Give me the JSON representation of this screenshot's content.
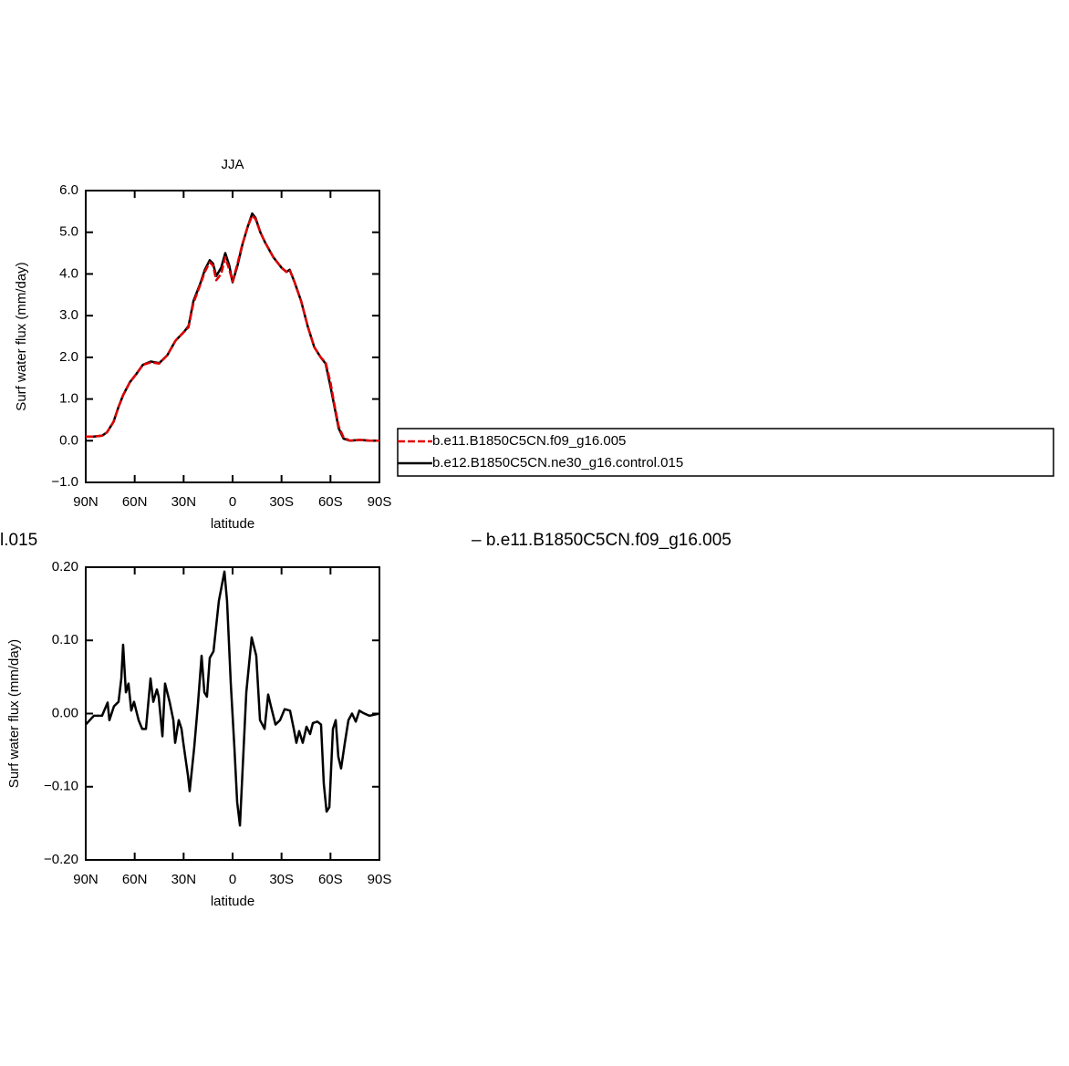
{
  "chart_data": [
    {
      "type": "line",
      "title": "JJA",
      "xlabel": "latitude",
      "ylabel": "Surf water flux (mm/day)",
      "x": [
        90,
        85,
        80,
        77,
        73,
        70,
        67,
        63,
        59,
        55,
        50,
        45,
        40,
        35,
        30,
        27,
        24,
        20,
        17,
        14,
        12,
        10,
        7,
        4.5,
        2,
        0,
        -3,
        -6,
        -9,
        -12,
        -14,
        -17,
        -20,
        -25,
        -30,
        -33,
        -35,
        -38,
        -42,
        -46,
        -50,
        -54,
        -57,
        -60,
        -62,
        -65,
        -68,
        -72,
        -78,
        -84,
        -90
      ],
      "series": [
        {
          "name": "b.e11.B1850C5CN.f09_g16.005",
          "color": "#e00000",
          "dashed": true,
          "values": [
            0.1,
            0.1,
            0.12,
            0.2,
            0.45,
            0.8,
            1.1,
            1.4,
            1.6,
            1.82,
            1.88,
            1.85,
            2.05,
            2.4,
            2.6,
            2.72,
            3.3,
            3.72,
            4.05,
            4.28,
            4.2,
            3.85,
            4.0,
            4.4,
            4.1,
            3.82,
            4.25,
            4.72,
            5.1,
            5.4,
            5.32,
            5.0,
            4.75,
            4.4,
            4.15,
            4.05,
            4.1,
            3.8,
            3.35,
            2.75,
            2.25,
            2.0,
            1.88,
            1.4,
            0.95,
            0.35,
            0.08,
            0.0,
            0.02,
            0.0,
            0.0
          ]
        },
        {
          "name": "b.e12.B1850C5CN.ne30_g16.control.015",
          "color": "#000000",
          "dashed": false,
          "values": [
            0.1,
            0.1,
            0.12,
            0.2,
            0.45,
            0.8,
            1.1,
            1.4,
            1.6,
            1.82,
            1.9,
            1.86,
            2.05,
            2.4,
            2.6,
            2.75,
            3.35,
            3.75,
            4.1,
            4.33,
            4.25,
            3.95,
            4.15,
            4.5,
            4.2,
            3.8,
            4.2,
            4.7,
            5.1,
            5.45,
            5.35,
            5.0,
            4.75,
            4.4,
            4.15,
            4.05,
            4.1,
            3.8,
            3.35,
            2.75,
            2.25,
            2.0,
            1.85,
            1.3,
            0.9,
            0.3,
            0.05,
            0.0,
            0.02,
            0.0,
            0.0
          ]
        }
      ],
      "xlim": [
        90,
        -90
      ],
      "xticks": [
        {
          "value": 90,
          "label": "90N"
        },
        {
          "value": 60,
          "label": "60N"
        },
        {
          "value": 30,
          "label": "30N"
        },
        0,
        {
          "value": -30,
          "label": "30S"
        },
        {
          "value": -60,
          "label": "60S"
        },
        {
          "value": -90,
          "label": "90S"
        }
      ],
      "ylim": [
        -1,
        6
      ],
      "yticks": [
        {
          "value": -1,
          "label": "−1.0"
        },
        {
          "value": 0,
          "label": "0.0"
        },
        {
          "value": 1,
          "label": "1.0"
        },
        {
          "value": 2,
          "label": "2.0"
        },
        {
          "value": 3,
          "label": "3.0"
        },
        {
          "value": 4,
          "label": "4.0"
        },
        {
          "value": 5,
          "label": "5.0"
        },
        {
          "value": 6,
          "label": "6.0"
        }
      ],
      "legend": "right"
    },
    {
      "type": "line",
      "annotations": [
        "l.015",
        "– b.e11.B1850C5CN.f09_g16.005"
      ],
      "xlabel": "latitude",
      "ylabel": "Surf water flux (mm/day)",
      "x": [
        90,
        85,
        80,
        76.6,
        75.5,
        72.7,
        69.9,
        68.2,
        67.1,
        65.4,
        63.8,
        62.1,
        60.4,
        57.6,
        55.4,
        53.1,
        50.3,
        48.6,
        46.4,
        45.3,
        43.0,
        41.4,
        38.6,
        36.3,
        35.2,
        33.0,
        31.3,
        30.2,
        27.4,
        26.3,
        23.5,
        21.2,
        19.0,
        17.3,
        15.7,
        14.0,
        11.7,
        8.4,
        5.0,
        3.4,
        1.1,
        -1.1,
        -2.8,
        -4.5,
        -8.4,
        -11.7,
        -14.5,
        -16.8,
        -19.6,
        -21.8,
        -23.5,
        -26.3,
        -29.1,
        -31.9,
        -35.2,
        -37.5,
        -39.1,
        -40.8,
        -43.0,
        -45.3,
        -47.5,
        -49.2,
        -52.0,
        -54.2,
        -55.9,
        -57.6,
        -59.3,
        -61.5,
        -63.2,
        -64.8,
        -66.5,
        -68.8,
        -71.0,
        -73.2,
        -75.5,
        -77.7,
        -79.9,
        -83.8,
        -90
      ],
      "values": [
        -0.015,
        -0.003,
        -0.003,
        0.015,
        -0.009,
        0.01,
        0.016,
        0.048,
        0.094,
        0.029,
        0.041,
        0.004,
        0.016,
        -0.009,
        -0.021,
        -0.021,
        0.048,
        0.016,
        0.033,
        0.023,
        -0.031,
        0.041,
        0.016,
        -0.009,
        -0.04,
        -0.009,
        -0.021,
        -0.04,
        -0.084,
        -0.106,
        -0.046,
        0.014,
        0.079,
        0.029,
        0.023,
        0.076,
        0.085,
        0.154,
        0.194,
        0.154,
        0.041,
        -0.046,
        -0.121,
        -0.153,
        0.029,
        0.104,
        0.079,
        -0.009,
        -0.021,
        0.026,
        0.01,
        -0.015,
        -0.009,
        0.006,
        0.004,
        -0.021,
        -0.04,
        -0.024,
        -0.04,
        -0.018,
        -0.028,
        -0.013,
        -0.011,
        -0.015,
        -0.096,
        -0.134,
        -0.128,
        -0.021,
        -0.009,
        -0.059,
        -0.075,
        -0.04,
        -0.009,
        0.0,
        -0.011,
        0.004,
        0.001,
        -0.003,
        0.0
      ],
      "color": "#000000",
      "xlim": [
        90,
        -90
      ],
      "xticks": [
        {
          "value": 90,
          "label": "90N"
        },
        {
          "value": 60,
          "label": "60N"
        },
        {
          "value": 30,
          "label": "30N"
        },
        0,
        {
          "value": -30,
          "label": "30S"
        },
        {
          "value": -60,
          "label": "60S"
        },
        {
          "value": -90,
          "label": "90S"
        }
      ],
      "ylim": [
        -0.2,
        0.2
      ],
      "yticks": [
        {
          "value": -0.2,
          "label": "−0.20"
        },
        {
          "value": -0.1,
          "label": "−0.10"
        },
        {
          "value": 0,
          "label": "0.00"
        },
        {
          "value": 0.1,
          "label": "0.10"
        },
        {
          "value": 0.2,
          "label": "0.20"
        }
      ]
    }
  ]
}
